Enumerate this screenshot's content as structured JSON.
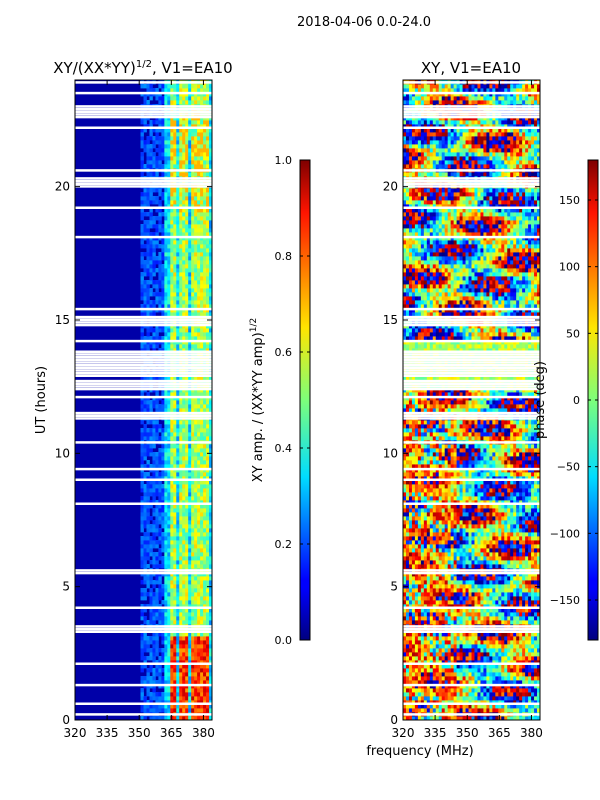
{
  "suptitle": "2018-04-06 0.0-24.0",
  "chart_data": [
    {
      "type": "heatmap",
      "title": "XY/(XX*YY)^{1/2}, V1=EA10",
      "title_main": "XY/(XX*YY)",
      "title_sup": "1/2",
      "title_tail": ", V1=EA10",
      "xlabel": "frequency (MHz)",
      "ylabel": "UT (hours)",
      "xlim": [
        320,
        384
      ],
      "ylim": [
        0,
        24
      ],
      "xticks": [
        "320",
        "335",
        "350",
        "365",
        "380"
      ],
      "yticks": [
        "0",
        "5",
        "10",
        "15",
        "20"
      ],
      "colorbar": {
        "label_main": "XY amp. / (XX*YY amp)",
        "label_sup": "1/2",
        "range": [
          0.0,
          1.0
        ],
        "ticks": [
          "0.0",
          "0.2",
          "0.4",
          "0.6",
          "0.8",
          "1.0"
        ]
      }
    },
    {
      "type": "heatmap",
      "title": "XY, V1=EA10",
      "xlabel": "frequency (MHz)",
      "ylabel": "",
      "xlim": [
        320,
        384
      ],
      "ylim": [
        0,
        24
      ],
      "xticks": [
        "320",
        "335",
        "350",
        "365",
        "380"
      ],
      "yticks": [
        "0",
        "5",
        "10",
        "15",
        "20"
      ],
      "colorbar": {
        "label": "phase (deg)",
        "range": [
          -180,
          180
        ],
        "ticks": [
          "−150",
          "−100",
          "−50",
          "0",
          "50",
          "100",
          "150"
        ]
      }
    }
  ],
  "shared_xlabel": "frequency (MHz)",
  "colors": {
    "background_low": "#00008f",
    "jet_low": "#00007f",
    "jet_mid": "#7fff7f",
    "jet_high": "#7f0000"
  }
}
